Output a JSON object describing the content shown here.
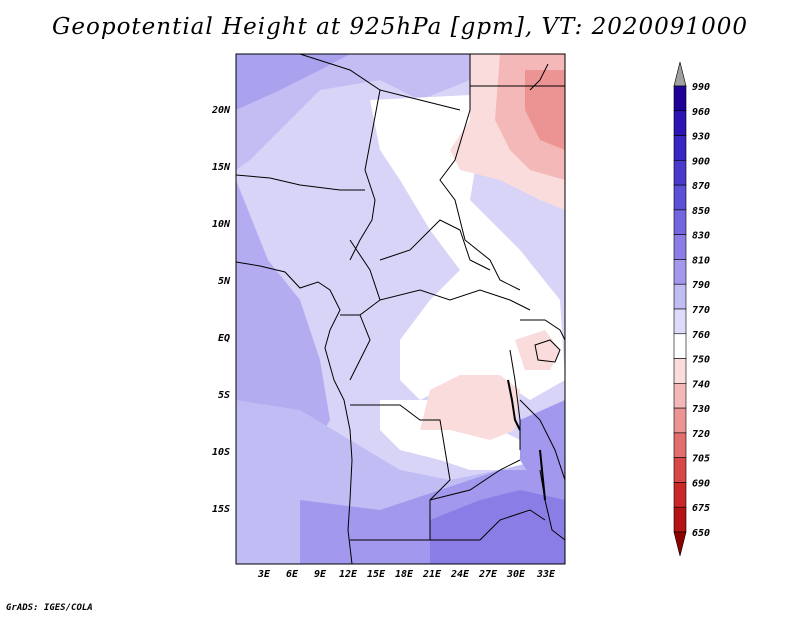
{
  "title": "Geopotential Height at 925hPa [gpm], VT: 2020091000",
  "credit": "GrADS: IGES/COLA",
  "lat_labels": [
    "20N",
    "15N",
    "10N",
    "5N",
    "EQ",
    "5S",
    "10S",
    "15S"
  ],
  "lon_labels": [
    "3E",
    "6E",
    "9E",
    "12E",
    "15E",
    "18E",
    "21E",
    "24E",
    "27E",
    "30E",
    "33E"
  ],
  "colorbar": {
    "labels": [
      "990",
      "960",
      "930",
      "900",
      "870",
      "850",
      "830",
      "810",
      "790",
      "770",
      "760",
      "750",
      "740",
      "730",
      "720",
      "705",
      "690",
      "675",
      "650"
    ],
    "colors": [
      "#a0a0a0",
      "#1e0096",
      "#2a14b4",
      "#3826c3",
      "#4a3acc",
      "#5c50d6",
      "#7466de",
      "#8a7ee6",
      "#a298ee",
      "#c0bcf4",
      "#dcdcfa",
      "#ffffff",
      "#fadcdc",
      "#f4b8b8",
      "#ec9494",
      "#e26e6e",
      "#d84848",
      "#c82828",
      "#b41414",
      "#8c0000"
    ]
  },
  "map": {
    "region": "Central Africa",
    "lon_range": [
      0,
      35
    ],
    "lat_range": [
      -20,
      25
    ],
    "field": "Geopotential Height 925hPa (gpm)"
  }
}
